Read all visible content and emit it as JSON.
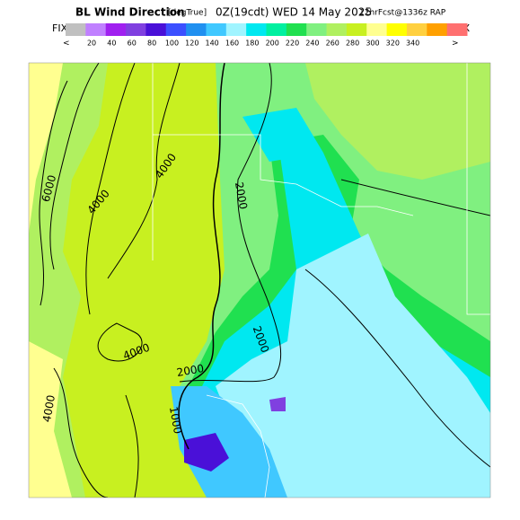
{
  "header": {
    "title": "BL Wind Direction",
    "units": "[degTrue]",
    "time": "0Z(19cdt) WED 14 May 2025",
    "forecast": "12hrFcst@1336z RAP"
  },
  "colorbar": {
    "left": "FIX",
    "right": "FIX",
    "less": "<",
    "more": ">",
    "ticks": [
      20,
      40,
      60,
      80,
      100,
      120,
      140,
      160,
      180,
      200,
      220,
      240,
      260,
      280,
      300,
      320,
      340
    ],
    "colors": [
      "#c0c0c0",
      "#c080ff",
      "#a020f0",
      "#8040e0",
      "#4a10d8",
      "#3c50ff",
      "#2090f0",
      "#40c8ff",
      "#a0f4ff",
      "#00e8f0",
      "#00f0a0",
      "#20e050",
      "#80f080",
      "#b0f060",
      "#c8f020",
      "#ffff90",
      "#ffff00",
      "#ffd040",
      "#ffa000",
      "#ff7070"
    ]
  },
  "map": {
    "contour_labels": [
      "6000",
      "4000",
      "4000",
      "2000",
      "2000",
      "4000",
      "2000",
      "1000",
      "4000"
    ]
  }
}
